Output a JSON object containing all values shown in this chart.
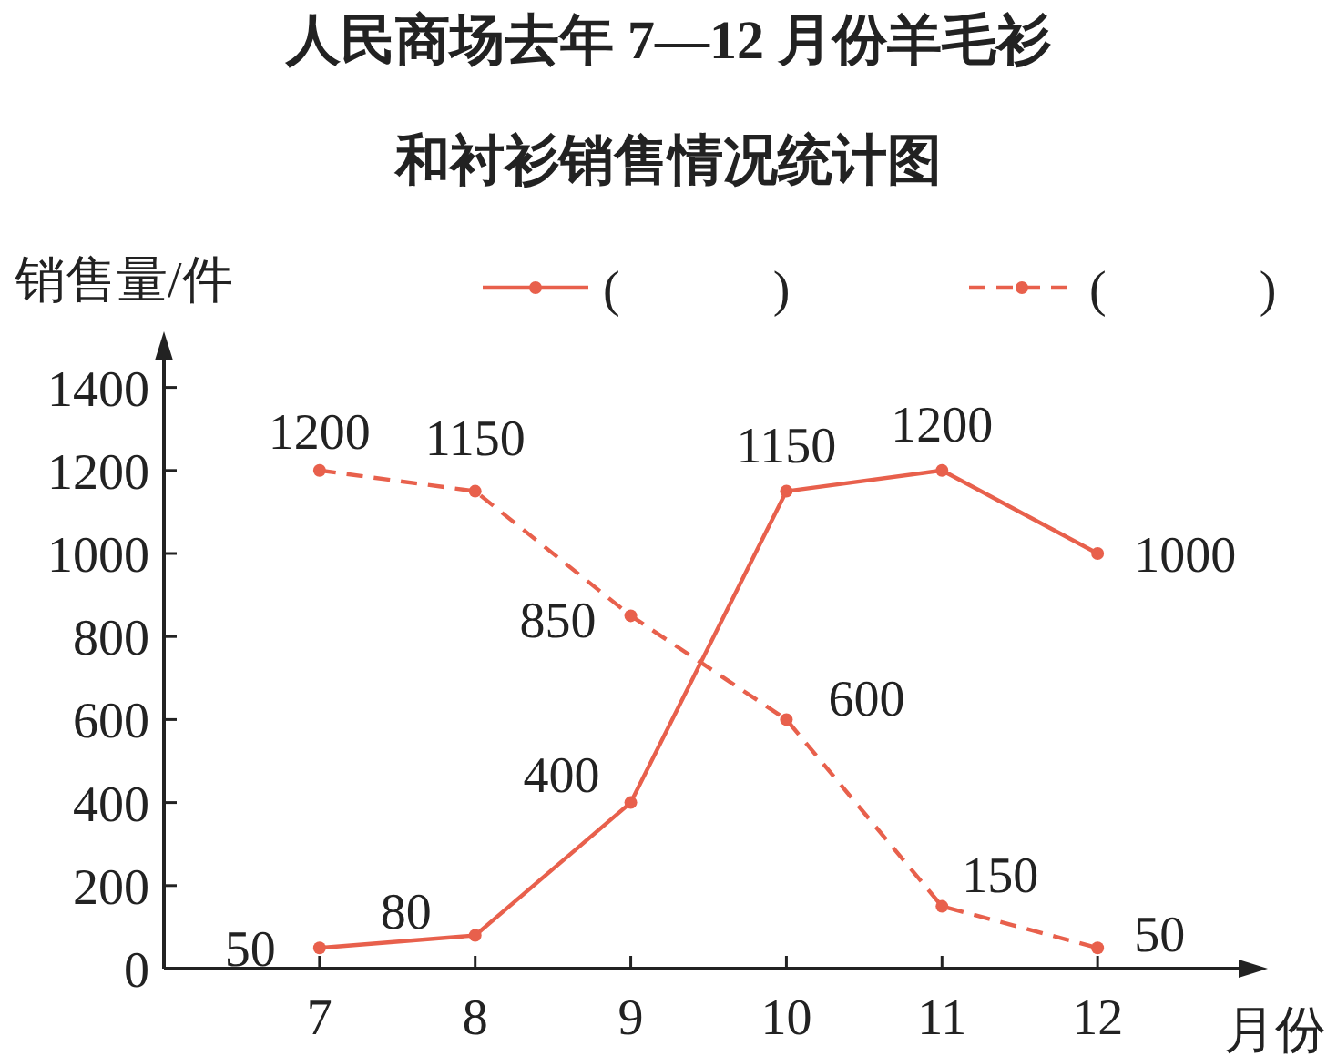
{
  "chart_data": {
    "type": "line",
    "title": "人民商场去年 7—12 月份羊毛衫",
    "subtitle": "和衬衫销售情况统计图",
    "ylabel": "销售量/件",
    "xlabel": "月份",
    "x": [
      7,
      8,
      9,
      10,
      11,
      12
    ],
    "xlim": [
      6,
      13
    ],
    "xticks": [
      7,
      8,
      9,
      10,
      11,
      12
    ],
    "ylim": [
      0,
      1500
    ],
    "yticks": [
      0,
      200,
      400,
      600,
      800,
      1000,
      1200,
      1400
    ],
    "series": [
      {
        "name": "(　　　)",
        "color": "#e8604c",
        "line_style": "solid",
        "values": [
          50,
          80,
          400,
          1150,
          1200,
          1000
        ]
      },
      {
        "name": "(　　　)",
        "color": "#e8604c",
        "line_style": "dashed",
        "values": [
          1200,
          1150,
          850,
          600,
          150,
          50
        ]
      }
    ],
    "marker": "circle",
    "data_labels": true,
    "legend": "top",
    "grid": false
  }
}
